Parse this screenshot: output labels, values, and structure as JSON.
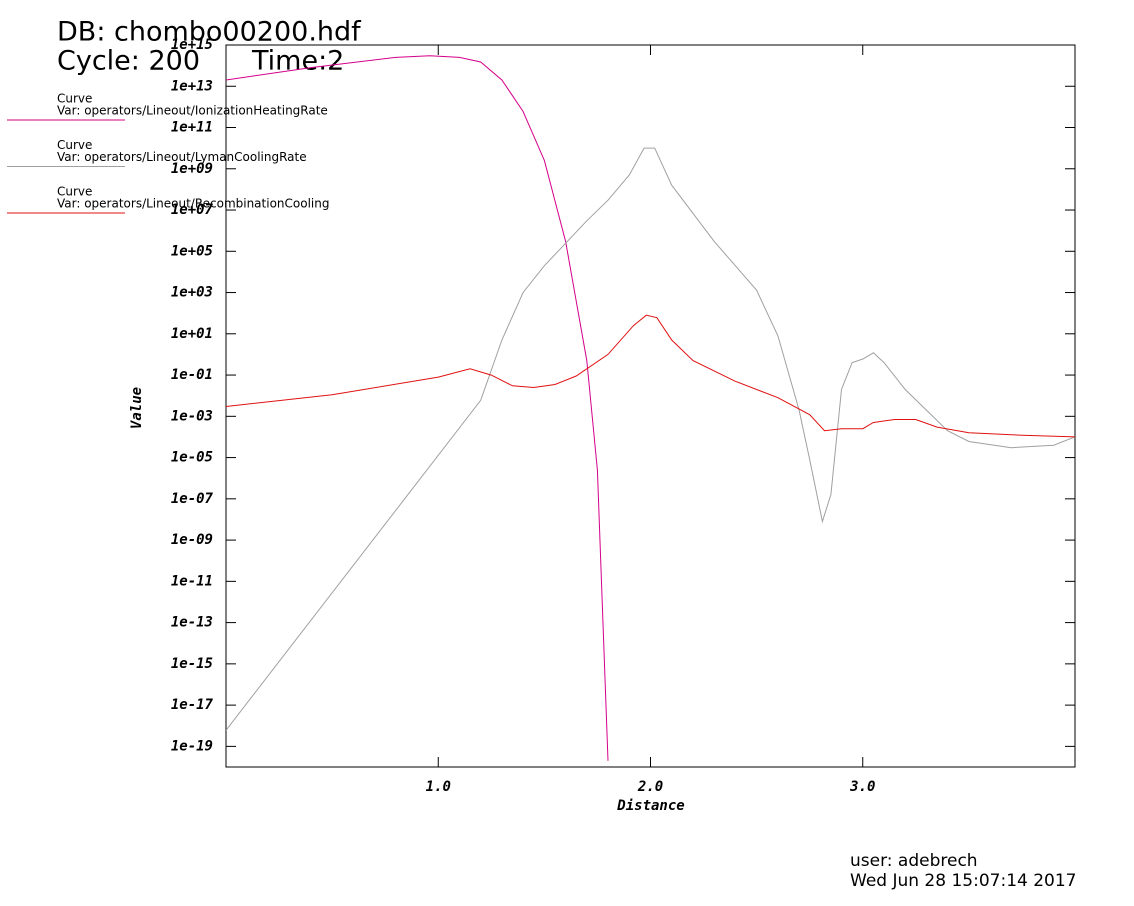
{
  "chart_data": {
    "type": "line",
    "title": "DB: chombo00200.hdf",
    "cycle_label": "Cycle: 200",
    "time_label": "Time:2",
    "legend_header": "Curve",
    "xlabel": "Distance",
    "ylabel": "Value",
    "user_label": "user: adebrech",
    "date_label": "Wed Jun 28 15:07:14 2017",
    "log_y": true,
    "xlim": [
      0,
      4
    ],
    "ylim": [
      1e-20,
      1000000000000000.0
    ],
    "xticks": [
      {
        "value": 1,
        "label": "1.0"
      },
      {
        "value": 2,
        "label": "2.0"
      },
      {
        "value": 3,
        "label": "3.0"
      }
    ],
    "yticks": [
      {
        "value": 1000000000000000.0,
        "label": "1e+15"
      },
      {
        "value": 10000000000000.0,
        "label": "1e+13"
      },
      {
        "value": 100000000000.0,
        "label": "1e+11"
      },
      {
        "value": 1000000000.0,
        "label": "1e+09"
      },
      {
        "value": 10000000.0,
        "label": "1e+07"
      },
      {
        "value": 100000.0,
        "label": "1e+05"
      },
      {
        "value": 1000.0,
        "label": "1e+03"
      },
      {
        "value": 10,
        "label": "1e+01"
      },
      {
        "value": 0.1,
        "label": "1e-01"
      },
      {
        "value": 0.001,
        "label": "1e-03"
      },
      {
        "value": 1e-05,
        "label": "1e-05"
      },
      {
        "value": 1e-07,
        "label": "1e-07"
      },
      {
        "value": 1e-09,
        "label": "1e-09"
      },
      {
        "value": 1e-11,
        "label": "1e-11"
      },
      {
        "value": 1e-13,
        "label": "1e-13"
      },
      {
        "value": 1e-15,
        "label": "1e-15"
      },
      {
        "value": 1e-17,
        "label": "1e-17"
      },
      {
        "value": 1e-19,
        "label": "1e-19"
      }
    ],
    "series": [
      {
        "name": "Var: operators/Lineout/IonizationHeatingRate",
        "color": "#d4008a",
        "x": [
          0,
          0.4,
          0.8,
          0.96,
          1.1,
          1.2,
          1.3,
          1.4,
          1.5,
          1.6,
          1.7,
          1.75,
          1.8
        ],
        "values": [
          20000000000000.0,
          80000000000000.0,
          250000000000000.0,
          300000000000000.0,
          250000000000000.0,
          150000000000000.0,
          20000000000000.0,
          600000000000.0,
          2500000000.0,
          300000.0,
          0.5,
          2.5e-06,
          2e-20
        ]
      },
      {
        "name": "Var: operators/Lineout/LymanCoolingRate",
        "color": "#a0a0a0",
        "x": [
          0,
          1.2,
          1.3,
          1.4,
          1.5,
          1.7,
          1.8,
          1.9,
          1.97,
          2.02,
          2.1,
          2.3,
          2.5,
          2.6,
          2.7,
          2.75,
          2.81,
          2.85,
          2.9,
          2.95,
          3.0,
          3.05,
          3.1,
          3.2,
          3.3,
          3.4,
          3.5,
          3.7,
          3.9,
          4.0
        ],
        "values": [
          6e-19,
          0.006,
          5,
          1000.0,
          20000.0,
          3000000.0,
          30000000.0,
          500000000.0,
          10000000000.0,
          10000000000.0,
          160000000.0,
          300000.0,
          1300.0,
          8,
          0.002,
          8e-06,
          8e-09,
          1.6e-07,
          0.02,
          0.4,
          0.6,
          1.2,
          0.4,
          0.02,
          0.002,
          0.0002,
          6e-05,
          3e-05,
          4e-05,
          0.0001
        ]
      },
      {
        "name": "Var: operators/Lineout/RecombinationCooling",
        "color": "#e01010",
        "x": [
          0,
          0.5,
          1.0,
          1.15,
          1.25,
          1.35,
          1.45,
          1.55,
          1.65,
          1.8,
          1.92,
          1.98,
          2.03,
          2.1,
          2.2,
          2.4,
          2.6,
          2.75,
          2.82,
          2.9,
          3.0,
          3.05,
          3.15,
          3.25,
          3.35,
          3.5,
          3.75,
          4.0
        ],
        "values": [
          0.003,
          0.011,
          0.08,
          0.2,
          0.1,
          0.03,
          0.025,
          0.035,
          0.09,
          1,
          25,
          80,
          60,
          5,
          0.5,
          0.05,
          0.008,
          0.0012,
          0.0002,
          0.00025,
          0.00025,
          0.0005,
          0.0007,
          0.0007,
          0.0003,
          0.00016,
          0.00012,
          0.0001
        ]
      }
    ]
  }
}
